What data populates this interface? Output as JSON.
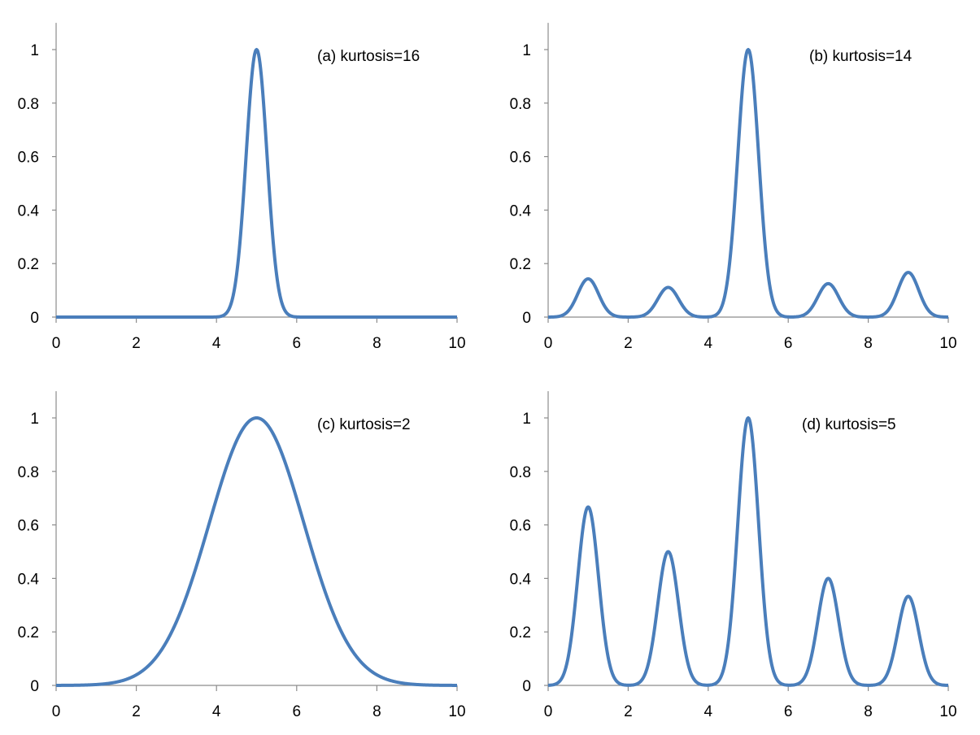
{
  "chart_data": [
    {
      "type": "line",
      "title": "(a) kurtosis=16",
      "xlim": [
        0,
        10
      ],
      "ylim": [
        0,
        1.1
      ],
      "xticks": [
        "0",
        "2",
        "4",
        "6",
        "8",
        "10"
      ],
      "yticks": [
        "0",
        "0.2",
        "0.4",
        "0.6",
        "0.8",
        "1"
      ],
      "color": "#4a7ebb",
      "peaks": [
        {
          "center": 5,
          "height": 1,
          "sigma": 0.26
        }
      ]
    },
    {
      "type": "line",
      "title": "(b) kurtosis=14",
      "xlim": [
        0,
        10
      ],
      "ylim": [
        0,
        1.1
      ],
      "xticks": [
        "0",
        "2",
        "4",
        "6",
        "8",
        "10"
      ],
      "yticks": [
        "0",
        "0.2",
        "0.4",
        "0.6",
        "0.8",
        "1"
      ],
      "color": "#4a7ebb",
      "peaks": [
        {
          "center": 1,
          "height": 0.143,
          "sigma": 0.26
        },
        {
          "center": 3,
          "height": 0.111,
          "sigma": 0.26
        },
        {
          "center": 5,
          "height": 1,
          "sigma": 0.26
        },
        {
          "center": 7,
          "height": 0.125,
          "sigma": 0.26
        },
        {
          "center": 9,
          "height": 0.167,
          "sigma": 0.26
        }
      ]
    },
    {
      "type": "line",
      "title": "(c) kurtosis=2",
      "xlim": [
        0,
        10
      ],
      "ylim": [
        0,
        1.1
      ],
      "xticks": [
        "0",
        "2",
        "4",
        "6",
        "8",
        "10"
      ],
      "yticks": [
        "0",
        "0.2",
        "0.4",
        "0.6",
        "0.8",
        "1"
      ],
      "color": "#4a7ebb",
      "peaks": [
        {
          "center": 5,
          "height": 1,
          "sigma": 1.18
        }
      ]
    },
    {
      "type": "line",
      "title": "(d) kurtosis=5",
      "xlim": [
        0,
        10
      ],
      "ylim": [
        0,
        1.1
      ],
      "xticks": [
        "0",
        "2",
        "4",
        "6",
        "8",
        "10"
      ],
      "yticks": [
        "0",
        "0.2",
        "0.4",
        "0.6",
        "0.8",
        "1"
      ],
      "color": "#4a7ebb",
      "peaks": [
        {
          "center": 1,
          "height": 0.667,
          "sigma": 0.26
        },
        {
          "center": 3,
          "height": 0.5,
          "sigma": 0.26
        },
        {
          "center": 5,
          "height": 1,
          "sigma": 0.26
        },
        {
          "center": 7,
          "height": 0.4,
          "sigma": 0.26
        },
        {
          "center": 9,
          "height": 0.333,
          "sigma": 0.26
        }
      ]
    }
  ]
}
